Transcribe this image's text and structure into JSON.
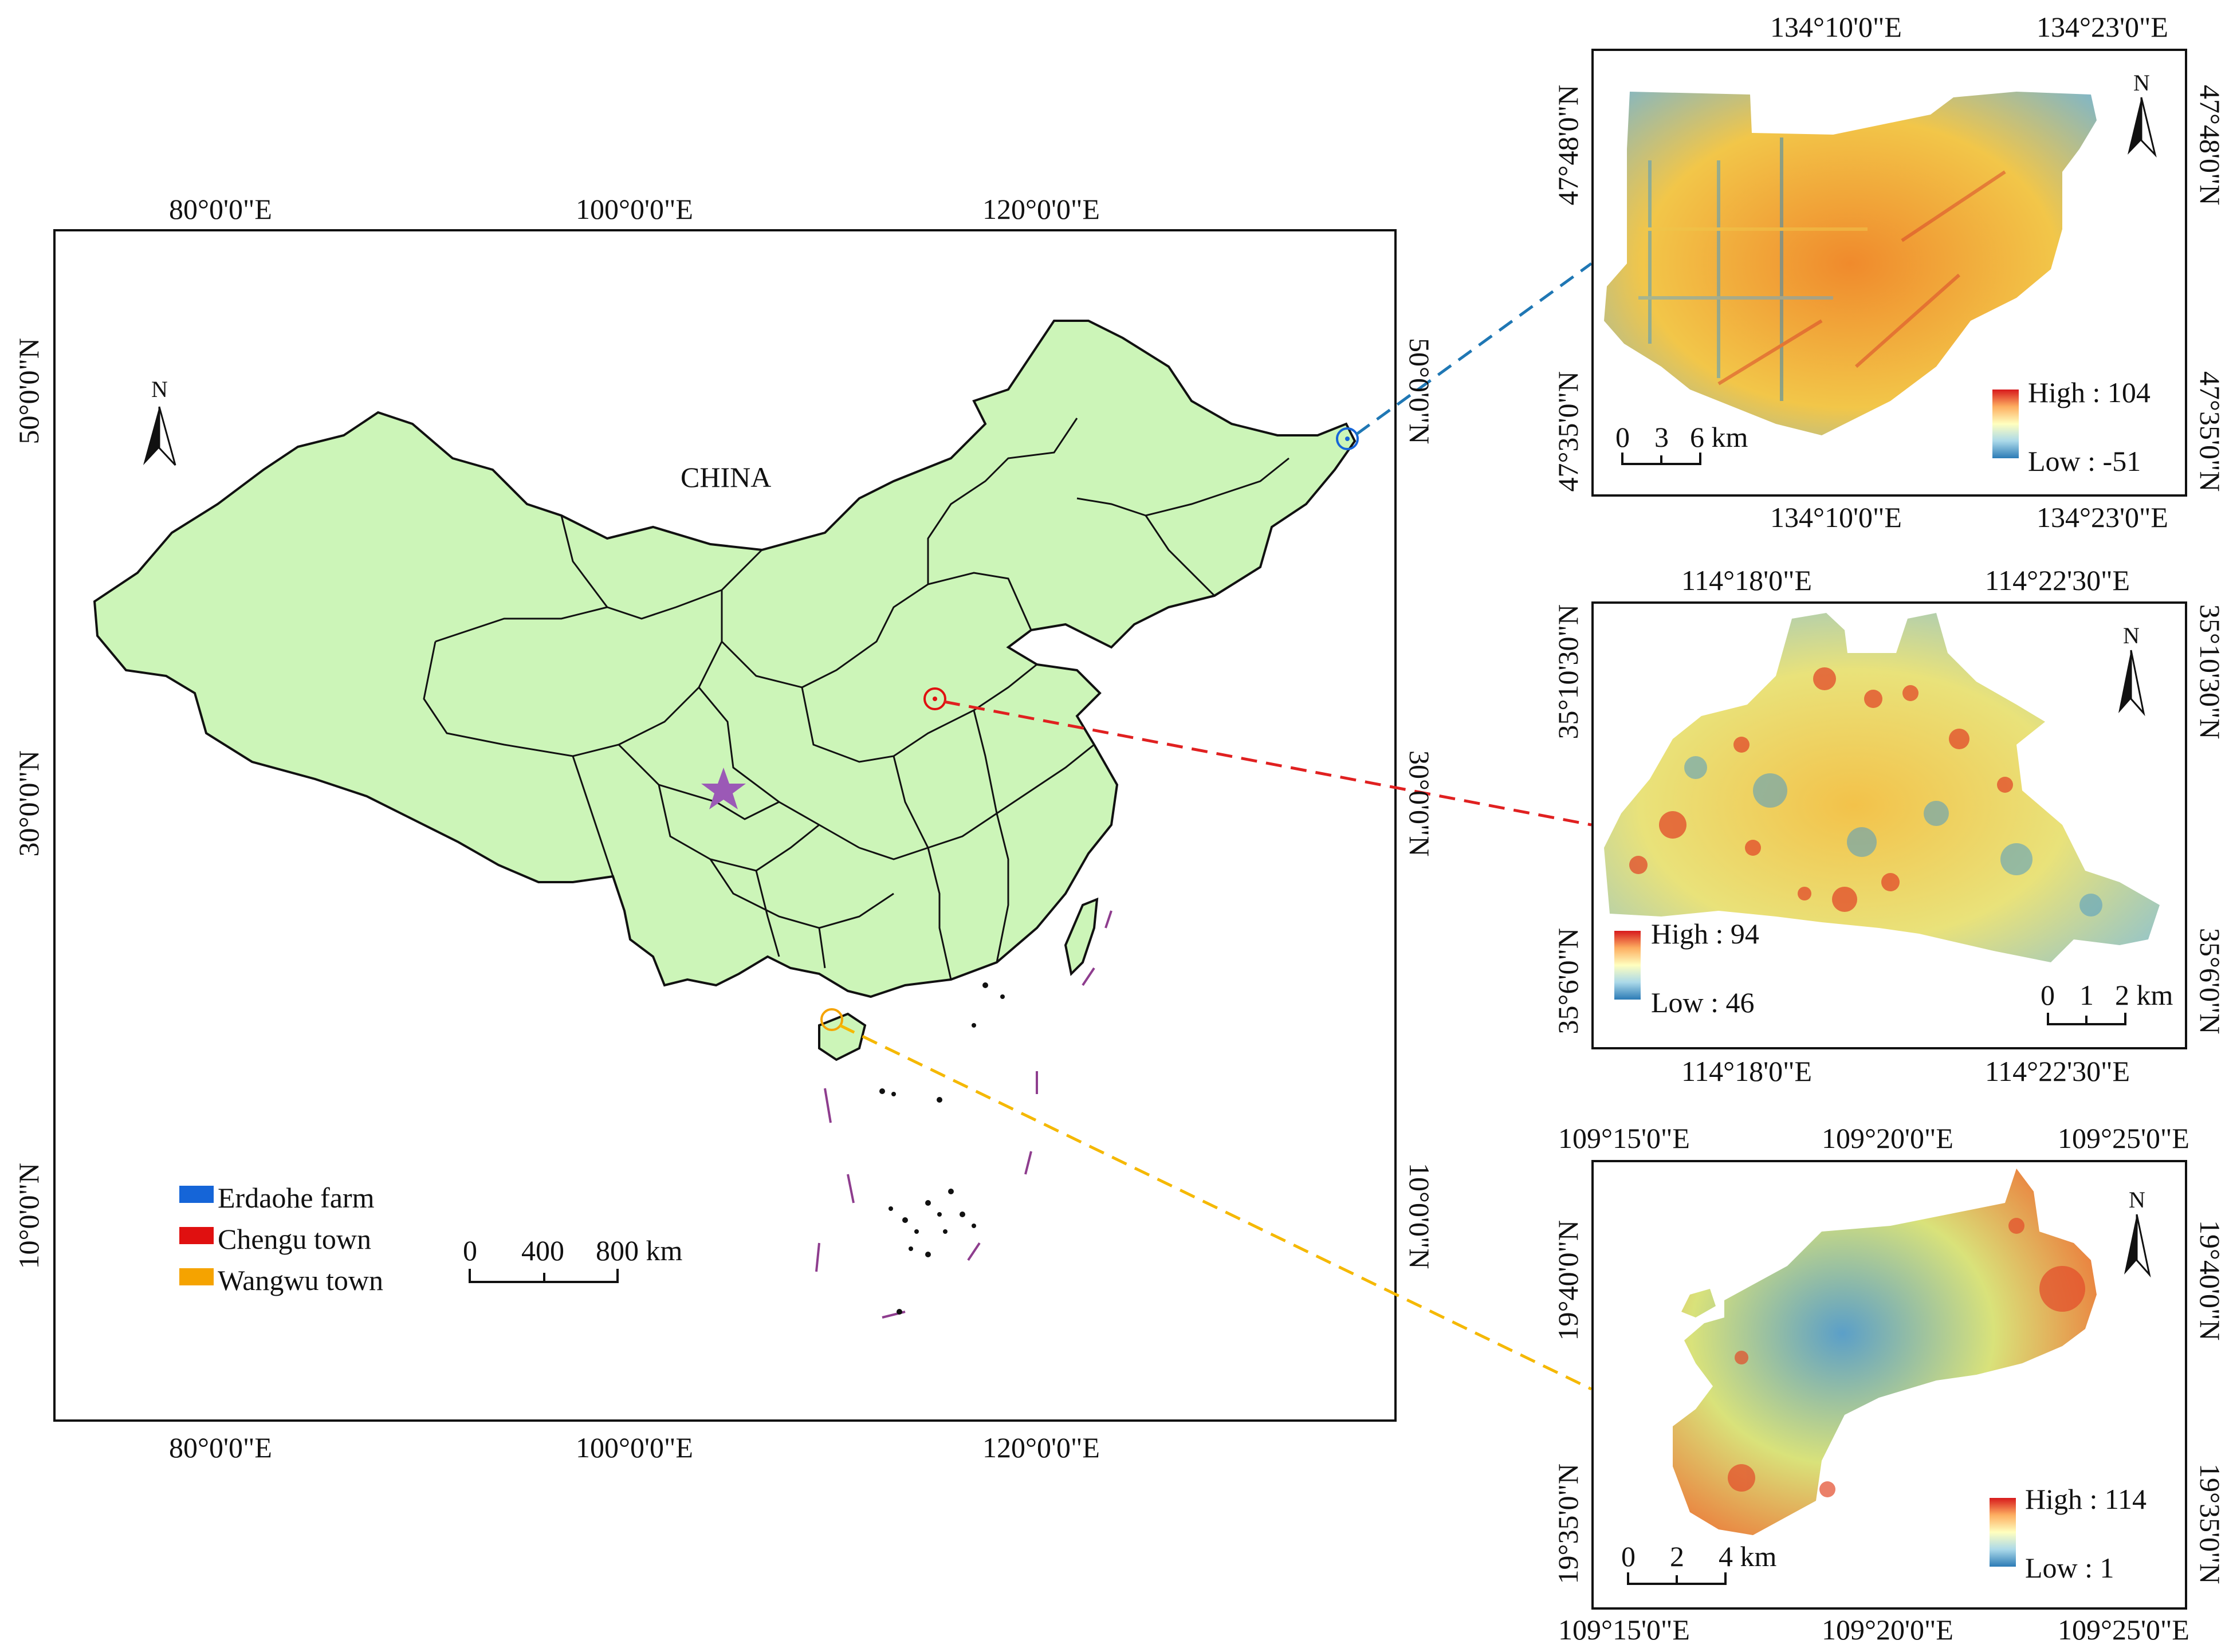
{
  "main_map": {
    "country_label": "CHINA",
    "top_lon_labels": [
      "80°0'0\"E",
      "100°0'0\"E",
      "120°0'0\"E"
    ],
    "bottom_lon_labels": [
      "80°0'0\"E",
      "100°0'0\"E",
      "120°0'0\"E"
    ],
    "left_lat_labels": [
      "50°0'0\"N",
      "30°0'0\"N",
      "10°0'0\"N"
    ],
    "right_lat_labels": [
      "50°0'0\"N",
      "30°0'0\"N",
      "10°0'0\"N"
    ],
    "north_arrow": "N",
    "scale_bar": [
      "0",
      "400",
      "800 km"
    ],
    "legend": [
      {
        "label": "Erdaohe farm",
        "color": "#1565d8"
      },
      {
        "label": "Chengu town",
        "color": "#e01010"
      },
      {
        "label": "Wangwu town",
        "color": "#f5a300"
      }
    ],
    "land_color": "#ccf5b8",
    "star_color": "#9b59b6"
  },
  "inset_erdaohe": {
    "top_lon_labels": [
      "134°10'0\"E",
      "134°23'0\"E"
    ],
    "bottom_lon_labels": [
      "134°10'0\"E",
      "134°23'0\"E"
    ],
    "left_lat_labels": [
      "47°48'0\"N",
      "47°35'0\"N"
    ],
    "right_lat_labels": [
      "47°48'0\"N",
      "47°35'0\"N"
    ],
    "north_arrow": "N",
    "scale_bar": [
      "0",
      "3",
      "6 km"
    ],
    "high_label": "High : 104",
    "low_label": "Low : -51",
    "link_color": "#1f77b4"
  },
  "inset_chengu": {
    "top_lon_labels": [
      "114°18'0\"E",
      "114°22'30\"E"
    ],
    "bottom_lon_labels": [
      "114°18'0\"E",
      "114°22'30\"E"
    ],
    "left_lat_labels": [
      "35°10'30\"N",
      "35°6'0\"N"
    ],
    "right_lat_labels": [
      "35°10'30\"N",
      "35°6'0\"N"
    ],
    "north_arrow": "N",
    "scale_bar": [
      "0",
      "1",
      "2 km"
    ],
    "high_label": "High : 94",
    "low_label": "Low : 46",
    "link_color": "#e02020"
  },
  "inset_wangwu": {
    "top_lon_labels": [
      "109°15'0\"E",
      "109°20'0\"E",
      "109°25'0\"E"
    ],
    "bottom_lon_labels": [
      "109°15'0\"E",
      "109°20'0\"E",
      "109°25'0\"E"
    ],
    "left_lat_labels": [
      "19°40'0\"N",
      "19°35'0\"N"
    ],
    "right_lat_labels": [
      "19°40'0\"N",
      "19°35'0\"N"
    ],
    "north_arrow": "N",
    "scale_bar": [
      "0",
      "2",
      "4 km"
    ],
    "high_label": "High : 114",
    "low_label": "Low : 1",
    "link_color": "#f5b800"
  }
}
